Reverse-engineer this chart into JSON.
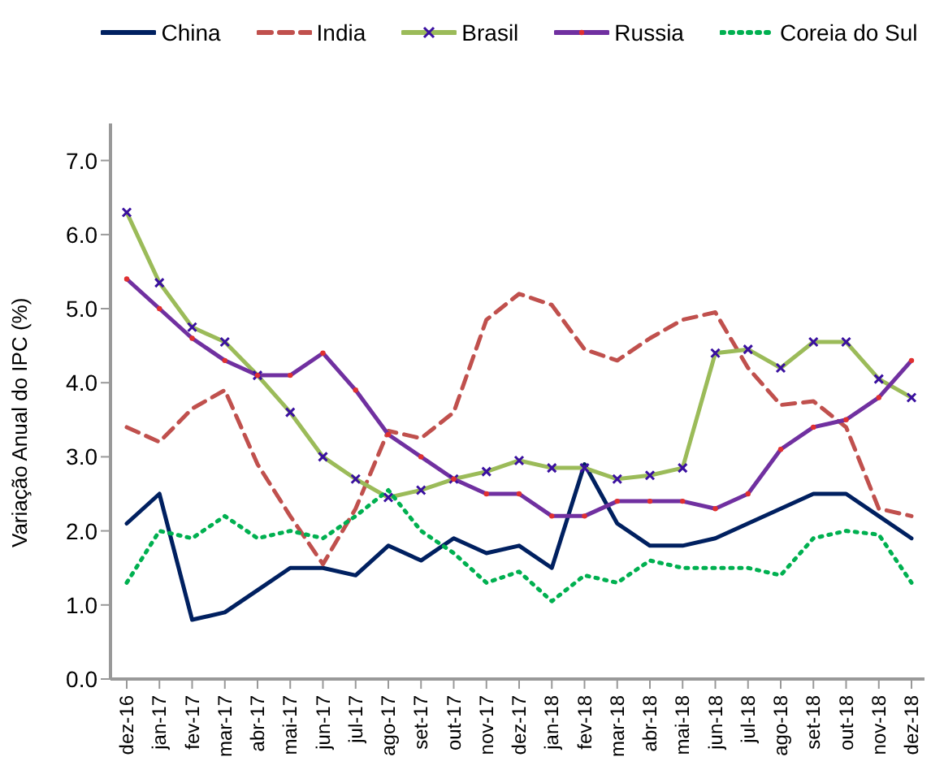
{
  "chart_data": {
    "type": "line",
    "categories": [
      "dez-16",
      "jan-17",
      "fev-17",
      "mar-17",
      "abr-17",
      "mai-17",
      "jun-17",
      "jul-17",
      "ago-17",
      "set-17",
      "out-17",
      "nov-17",
      "dez-17",
      "jan-18",
      "fev-18",
      "mar-18",
      "abr-18",
      "mai-18",
      "jun-18",
      "jul-18",
      "ago-18",
      "set-18",
      "out-18",
      "nov-18",
      "dez-18"
    ],
    "ylabel": "Variação Anual do IPC  (%)",
    "ylim": [
      0,
      7.5
    ],
    "yticks": [
      {
        "value": 0,
        "label": "0.0"
      },
      {
        "value": 1,
        "label": "1.0"
      },
      {
        "value": 2,
        "label": "2.0"
      },
      {
        "value": 3,
        "label": "3.0"
      },
      {
        "value": 4,
        "label": "4.0"
      },
      {
        "value": 5,
        "label": "5.0"
      },
      {
        "value": 6,
        "label": "6.0"
      },
      {
        "value": 7,
        "label": "7.0"
      }
    ],
    "grid": false,
    "legend": "top",
    "series": [
      {
        "name": "China",
        "color": "#002060",
        "line_style": "solid",
        "marker": "none",
        "values": [
          2.1,
          2.5,
          0.8,
          0.9,
          1.2,
          1.5,
          1.5,
          1.4,
          1.8,
          1.6,
          1.9,
          1.7,
          1.8,
          1.5,
          2.9,
          2.1,
          1.8,
          1.8,
          1.9,
          2.1,
          2.3,
          2.5,
          2.5,
          2.2,
          1.9
        ]
      },
      {
        "name": "India",
        "color": "#c0504d",
        "line_style": "dashed",
        "marker": "none",
        "values": [
          3.4,
          3.2,
          3.65,
          3.9,
          2.9,
          2.2,
          1.55,
          2.3,
          3.35,
          3.25,
          3.6,
          4.85,
          5.2,
          5.05,
          4.45,
          4.3,
          4.6,
          4.85,
          4.95,
          4.2,
          3.7,
          3.75,
          3.4,
          2.3,
          2.2
        ]
      },
      {
        "name": "Brasil",
        "color": "#9bbb59",
        "line_style": "solid",
        "marker": "cross",
        "values": [
          6.3,
          5.35,
          4.75,
          4.55,
          4.1,
          3.6,
          3.0,
          2.7,
          2.45,
          2.55,
          2.7,
          2.8,
          2.95,
          2.85,
          2.85,
          2.7,
          2.75,
          2.85,
          4.4,
          4.45,
          4.2,
          4.55,
          4.55,
          4.05,
          3.8
        ]
      },
      {
        "name": "Russia",
        "color": "#7030a0",
        "line_style": "solid",
        "marker": "circle",
        "values": [
          5.4,
          5.0,
          4.6,
          4.3,
          4.1,
          4.1,
          4.4,
          3.9,
          3.3,
          3.0,
          2.7,
          2.5,
          2.5,
          2.2,
          2.2,
          2.4,
          2.4,
          2.4,
          2.3,
          2.5,
          3.1,
          3.4,
          3.5,
          3.8,
          4.3
        ]
      },
      {
        "name": "Coreia do Sul",
        "color": "#00b050",
        "line_style": "dotted",
        "marker": "none",
        "values": [
          1.3,
          2.0,
          1.9,
          2.2,
          1.9,
          2.0,
          1.9,
          2.2,
          2.55,
          2.0,
          1.7,
          1.3,
          1.45,
          1.05,
          1.4,
          1.3,
          1.6,
          1.5,
          1.5,
          1.5,
          1.4,
          1.9,
          2.0,
          1.95,
          1.3
        ]
      }
    ]
  }
}
